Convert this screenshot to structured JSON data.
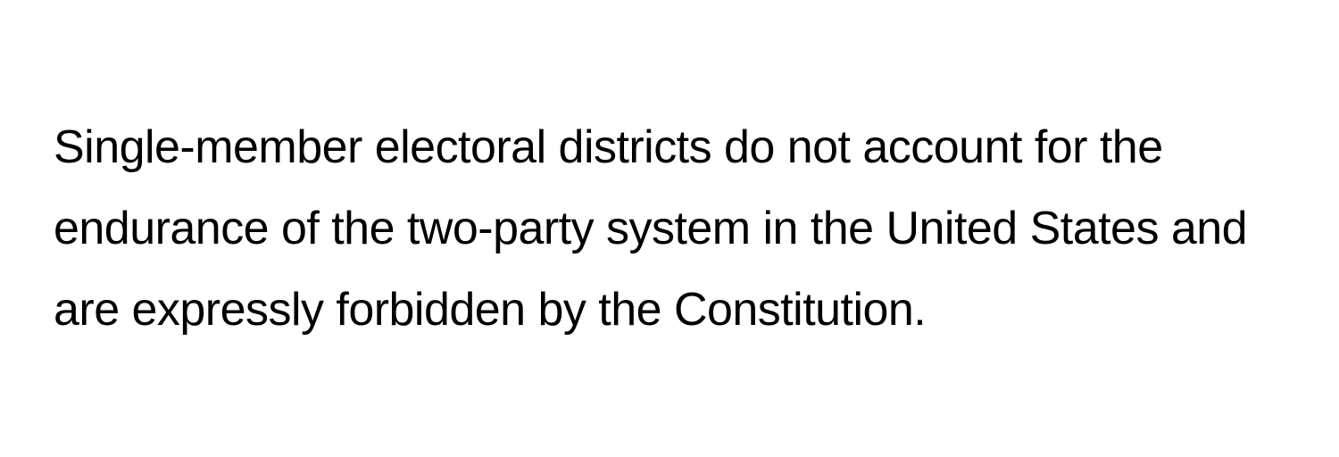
{
  "paragraph": {
    "text": "Single-member electoral districts do not account for the endurance of the two-party system in the United States and are expressly forbidden by the Constitution.",
    "font_size": 52,
    "line_height": 1.75,
    "color": "#000000",
    "background_color": "#ffffff",
    "font_weight": 400
  }
}
